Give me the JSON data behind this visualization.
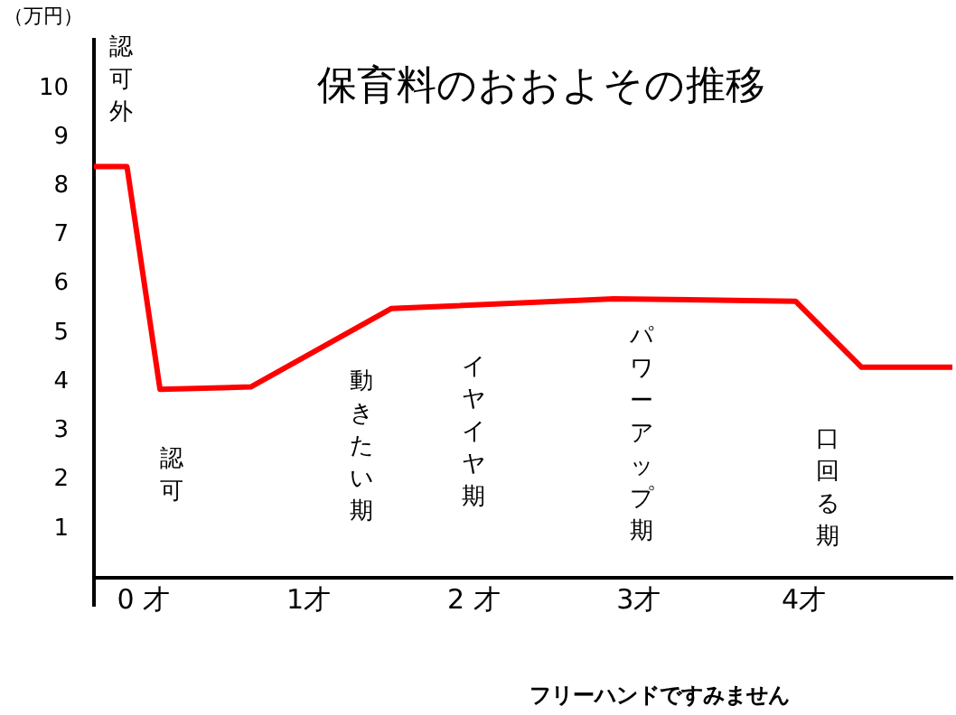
{
  "chart_data": {
    "type": "line",
    "title": "保育料のおおよその推移",
    "ylabel": "（万円）",
    "x": [
      -0.3,
      -0.1,
      0.1,
      0.65,
      1.5,
      2.85,
      3.95,
      4.35,
      4.9
    ],
    "series": [
      {
        "color": "#ff0000",
        "values": [
          8.4,
          8.4,
          3.85,
          3.9,
          5.5,
          5.7,
          5.65,
          4.3,
          4.3
        ]
      }
    ],
    "xlim": [
      -0.3,
      4.9
    ],
    "xticks": [
      {
        "value": 0,
        "label": "0 才"
      },
      {
        "value": 1,
        "label": "1才"
      },
      {
        "value": 2,
        "label": "2 才"
      },
      {
        "value": 3,
        "label": "3才"
      },
      {
        "value": 4,
        "label": "4才"
      }
    ],
    "ylim": [
      0,
      11
    ],
    "yticks": [
      1,
      2,
      3,
      4,
      5,
      6,
      7,
      8,
      9,
      10
    ],
    "grid": false,
    "legend": false,
    "marker": "none",
    "line_style": "solid",
    "annotations": [
      "認可外",
      "認可",
      "動きたい期",
      "イヤイヤ期",
      "パワーアップ期",
      "口回る期",
      "フリーハンドですみません"
    ]
  }
}
